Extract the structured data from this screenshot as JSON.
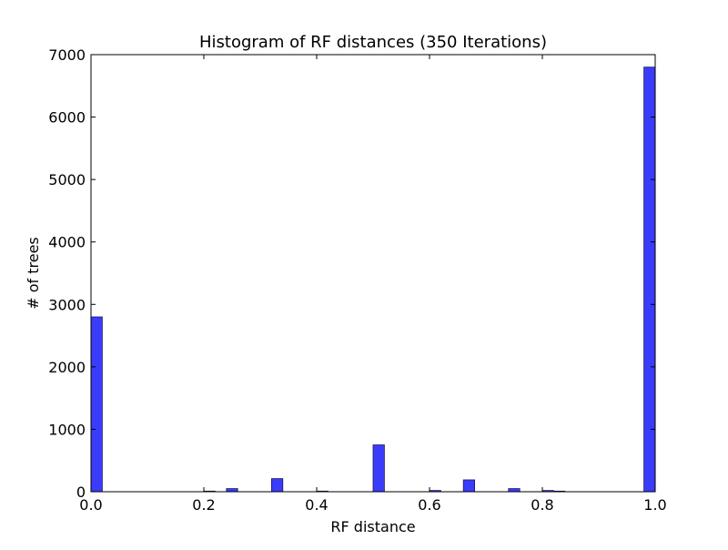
{
  "chart_data": {
    "type": "bar",
    "title": "Histogram of RF distances (350 Iterations)",
    "xlabel": "RF distance",
    "ylabel": "# of trees",
    "xlim": [
      0.0,
      1.0
    ],
    "ylim": [
      0,
      7000
    ],
    "grid": false,
    "legend": "none",
    "bar_color": "#3b3bfa",
    "bar_edge_color": "#1a1a5e",
    "bin_width": 0.02,
    "x_ticks": [
      0.0,
      0.2,
      0.4,
      0.6,
      0.8,
      1.0
    ],
    "x_tick_labels": [
      "0.0",
      "0.2",
      "0.4",
      "0.6",
      "0.8",
      "1.0"
    ],
    "y_ticks": [
      0,
      1000,
      2000,
      3000,
      4000,
      5000,
      6000,
      7000
    ],
    "y_tick_labels": [
      "0",
      "1000",
      "2000",
      "3000",
      "4000",
      "5000",
      "6000",
      "7000"
    ],
    "bins": [
      {
        "x": 0.0,
        "value": 2800
      },
      {
        "x": 0.2,
        "value": 10
      },
      {
        "x": 0.24,
        "value": 50
      },
      {
        "x": 0.32,
        "value": 210
      },
      {
        "x": 0.4,
        "value": 10
      },
      {
        "x": 0.5,
        "value": 750
      },
      {
        "x": 0.6,
        "value": 20
      },
      {
        "x": 0.66,
        "value": 190
      },
      {
        "x": 0.74,
        "value": 50
      },
      {
        "x": 0.8,
        "value": 20
      },
      {
        "x": 0.82,
        "value": 10
      },
      {
        "x": 0.98,
        "value": 6800
      }
    ]
  }
}
